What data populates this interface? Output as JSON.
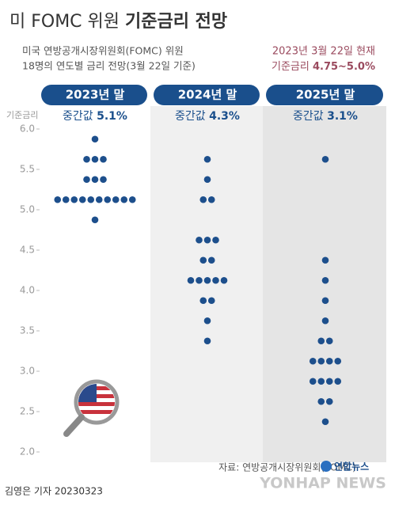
{
  "chart_data": {
    "type": "dotplot",
    "title": "미 FOMC 위원",
    "title_bold": "기준금리 전망",
    "subtitle": [
      "미국 연방공개시장위원회(FOMC) 위원",
      "18명의 연도별 금리 전망(3월 22일 기준)"
    ],
    "note_date": "2023년 3월 22일 현재",
    "note_rate_label": "기준금리",
    "note_rate_value": "4.75~5.0%",
    "y_label": "기준금리",
    "median_text": "중간값",
    "color": "#1d4f8c",
    "ylim": [
      2.0,
      6.0
    ],
    "yticks": [
      {
        "value": 2.0,
        "label": "2.0"
      },
      {
        "value": 2.5,
        "label": "2.5"
      },
      {
        "value": 3.0,
        "label": "3.0"
      },
      {
        "value": 3.5,
        "label": "3.5"
      },
      {
        "value": 4.0,
        "label": "4.0"
      },
      {
        "value": 4.5,
        "label": "4.5"
      },
      {
        "value": 5.0,
        "label": "5.0"
      },
      {
        "value": 5.5,
        "label": "5.5"
      },
      {
        "value": 6.0,
        "label": "6.0"
      }
    ],
    "columns": [
      {
        "name": "2023년 말",
        "median": 5.1,
        "median_label": "5.1%",
        "dots": [
          {
            "rate": 5.875,
            "count": 1
          },
          {
            "rate": 5.625,
            "count": 3
          },
          {
            "rate": 5.375,
            "count": 3
          },
          {
            "rate": 5.125,
            "count": 10
          },
          {
            "rate": 4.875,
            "count": 1
          }
        ]
      },
      {
        "name": "2024년 말",
        "median": 4.3,
        "median_label": "4.3%",
        "dots": [
          {
            "rate": 5.625,
            "count": 1
          },
          {
            "rate": 5.375,
            "count": 1
          },
          {
            "rate": 5.125,
            "count": 2
          },
          {
            "rate": 4.625,
            "count": 3
          },
          {
            "rate": 4.375,
            "count": 2
          },
          {
            "rate": 4.125,
            "count": 5
          },
          {
            "rate": 3.875,
            "count": 2
          },
          {
            "rate": 3.625,
            "count": 1
          },
          {
            "rate": 3.375,
            "count": 1
          }
        ]
      },
      {
        "name": "2025년 말",
        "median": 3.1,
        "median_label": "3.1%",
        "dots": [
          {
            "rate": 5.625,
            "count": 1
          },
          {
            "rate": 4.375,
            "count": 1
          },
          {
            "rate": 4.125,
            "count": 1
          },
          {
            "rate": 3.875,
            "count": 1
          },
          {
            "rate": 3.625,
            "count": 1
          },
          {
            "rate": 3.375,
            "count": 2
          },
          {
            "rate": 3.125,
            "count": 4
          },
          {
            "rate": 2.875,
            "count": 4
          },
          {
            "rate": 2.625,
            "count": 2
          },
          {
            "rate": 2.375,
            "count": 1
          }
        ]
      }
    ],
    "source": "자료: 연방공개시장위원회(FOMC)",
    "logo": "연합뉴스",
    "watermark": "YONHAP NEWS",
    "credit": "김영은 기자  20230323"
  }
}
